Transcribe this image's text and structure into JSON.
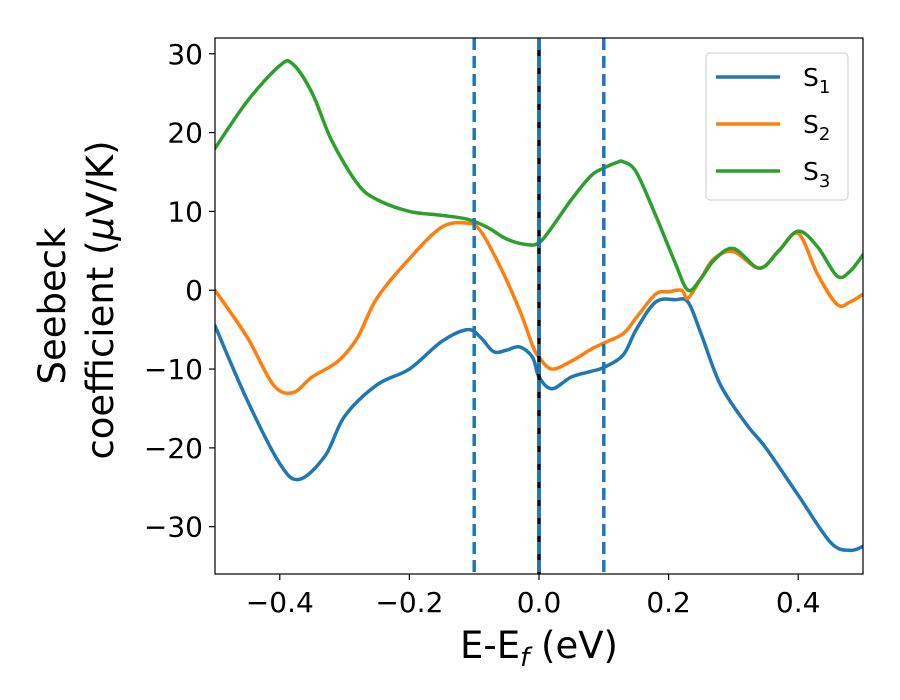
{
  "chart_data": {
    "type": "line",
    "title": "",
    "xlabel": {
      "main": "E-E",
      "sub": "f",
      "unit": " (eV)"
    },
    "ylabel": {
      "line1": "Seebeck",
      "line2": "coefficient  (",
      "mu": "μ",
      "unit": "V/K)"
    },
    "xlim": [
      -0.5,
      0.5
    ],
    "ylim": [
      -36,
      32
    ],
    "xticks": [
      -0.4,
      -0.2,
      0.0,
      0.2,
      0.4
    ],
    "xtick_labels": [
      "−0.4",
      "−0.2",
      "0.0",
      "0.2",
      "0.4"
    ],
    "yticks": [
      -30,
      -20,
      -10,
      0,
      10,
      20,
      30
    ],
    "ytick_labels": [
      "−30",
      "−20",
      "−10",
      "0",
      "10",
      "20",
      "30"
    ],
    "grid": false,
    "legend_position": "top-right",
    "vlines": [
      {
        "x": -0.1,
        "style": "dashed",
        "color": "#1f77b4"
      },
      {
        "x": 0.1,
        "style": "dashed",
        "color": "#1f77b4"
      },
      {
        "x": 0.0,
        "style": "solid",
        "color": "#000000"
      },
      {
        "x": 0.0,
        "style": "dashed",
        "color": "#1f77b4"
      }
    ],
    "series": [
      {
        "name": "S",
        "sub": "1",
        "color": "#1f77b4",
        "x": [
          -0.5,
          -0.45,
          -0.4,
          -0.37,
          -0.33,
          -0.3,
          -0.25,
          -0.2,
          -0.15,
          -0.11,
          -0.09,
          -0.07,
          -0.05,
          -0.03,
          -0.01,
          0.0,
          0.02,
          0.05,
          0.08,
          0.1,
          0.13,
          0.15,
          0.18,
          0.21,
          0.23,
          0.25,
          0.28,
          0.32,
          0.35,
          0.4,
          0.45,
          0.48,
          0.5
        ],
        "values": [
          -4.5,
          -14,
          -22,
          -24,
          -21,
          -16,
          -12,
          -10,
          -6.5,
          -5,
          -6,
          -7.8,
          -7.6,
          -7.2,
          -8.5,
          -11,
          -12.5,
          -11,
          -10.3,
          -9.8,
          -8.2,
          -5,
          -1.5,
          -1.2,
          -1.5,
          -5.5,
          -12,
          -17,
          -20,
          -26,
          -32,
          -33,
          -32.5
        ]
      },
      {
        "name": "S",
        "sub": "2",
        "color": "#ff7f0e",
        "x": [
          -0.5,
          -0.45,
          -0.41,
          -0.38,
          -0.35,
          -0.31,
          -0.28,
          -0.25,
          -0.2,
          -0.15,
          -0.11,
          -0.09,
          -0.06,
          -0.03,
          -0.01,
          0.0,
          0.02,
          0.05,
          0.08,
          0.1,
          0.13,
          0.15,
          0.18,
          0.2,
          0.22,
          0.23,
          0.25,
          0.27,
          0.3,
          0.34,
          0.37,
          0.4,
          0.43,
          0.46,
          0.48,
          0.5
        ],
        "values": [
          0,
          -6,
          -12,
          -13,
          -11,
          -9,
          -6,
          -1,
          4,
          8,
          8.5,
          7.5,
          3,
          -2.5,
          -7,
          -8.5,
          -10,
          -9,
          -7.5,
          -6.7,
          -5.5,
          -3.5,
          -0.5,
          -0.2,
          0,
          -1,
          1.5,
          4,
          4.9,
          2.8,
          5,
          7.2,
          2,
          -1.8,
          -1.5,
          -0.5
        ]
      },
      {
        "name": "S",
        "sub": "3",
        "color": "#2ca02c",
        "x": [
          -0.5,
          -0.45,
          -0.4,
          -0.38,
          -0.35,
          -0.32,
          -0.28,
          -0.25,
          -0.2,
          -0.15,
          -0.11,
          -0.08,
          -0.05,
          -0.02,
          0.0,
          0.02,
          0.05,
          0.08,
          0.1,
          0.12,
          0.13,
          0.15,
          0.18,
          0.21,
          0.23,
          0.25,
          0.27,
          0.3,
          0.34,
          0.37,
          0.4,
          0.43,
          0.46,
          0.48,
          0.5
        ],
        "values": [
          18,
          24,
          28.5,
          28.7,
          25,
          19,
          13.5,
          11.5,
          10,
          9.5,
          9,
          8,
          6.5,
          5.8,
          6,
          8,
          11.5,
          14.5,
          15.5,
          16.2,
          16.3,
          15,
          9.5,
          3.5,
          0,
          1.5,
          3.8,
          5.3,
          2.8,
          5,
          7.5,
          5.5,
          1.8,
          2.4,
          4.5
        ]
      }
    ]
  }
}
